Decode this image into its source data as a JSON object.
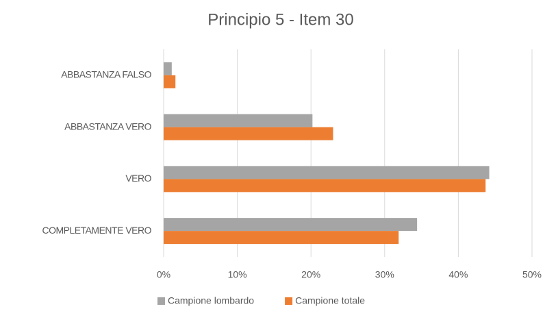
{
  "chart_data": {
    "type": "barh",
    "title": "Principio 5 - Item 30",
    "categories": [
      "ABBASTANZA FALSO",
      "ABBASTANZA VERO",
      "VERO",
      "COMPLETAMENTE VERO"
    ],
    "series": [
      {
        "name": "Campione lombardo",
        "color": "#a5a5a5",
        "values": [
          1.1,
          20.2,
          44.2,
          34.4
        ]
      },
      {
        "name": "Campione totale",
        "color": "#ed7d31",
        "values": [
          1.6,
          23.0,
          43.7,
          31.9
        ]
      }
    ],
    "xlim": [
      0,
      50
    ],
    "xticks": [
      {
        "value": 0,
        "label": "0%"
      },
      {
        "value": 10,
        "label": "10%"
      },
      {
        "value": 20,
        "label": "20%"
      },
      {
        "value": 30,
        "label": "30%"
      },
      {
        "value": 40,
        "label": "40%"
      },
      {
        "value": 50,
        "label": "50%"
      }
    ],
    "grid": true,
    "legend": "bottom"
  }
}
